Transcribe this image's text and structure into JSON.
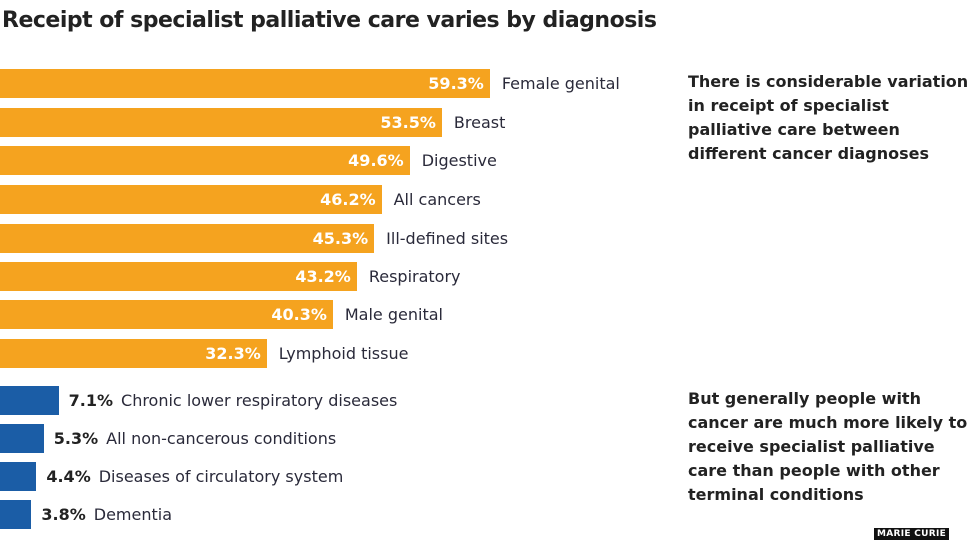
{
  "chart_data": {
    "type": "bar",
    "orientation": "horizontal",
    "title": "Receipt of specialist palliative care varies by diagnosis",
    "unit": "%",
    "categories": [
      "Female genital",
      "Breast",
      "Digestive",
      "All cancers",
      "Ill-defined sites",
      "Respiratory",
      "Male genital",
      "Lymphoid tissue",
      "Chronic lower respiratory diseases",
      "All non-cancerous conditions",
      "Diseases of circulatory system",
      "Dementia"
    ],
    "values": [
      59.3,
      53.5,
      49.6,
      46.2,
      45.3,
      43.2,
      40.3,
      32.3,
      7.1,
      5.3,
      4.4,
      3.8
    ],
    "labels": [
      "59.3%",
      "53.5%",
      "49.6%",
      "46.2%",
      "45.3%",
      "43.2%",
      "40.3%",
      "32.3%",
      "7.1%",
      "5.3%",
      "4.4%",
      "3.8%"
    ],
    "groups": [
      "cancer",
      "cancer",
      "cancer",
      "cancer",
      "cancer",
      "cancer",
      "cancer",
      "cancer",
      "non-cancer",
      "non-cancer",
      "non-cancer",
      "non-cancer"
    ],
    "colors": {
      "cancer": "#f5a31f",
      "non-cancer": "#1b5da6"
    },
    "annotations": [
      "There is considerable variation in receipt of specialist palliative care between different cancer diagnoses",
      "But generally people with cancer are much more likely to receive specialist palliative care than people with other terminal conditions"
    ],
    "source": "MARIE CURIE"
  }
}
